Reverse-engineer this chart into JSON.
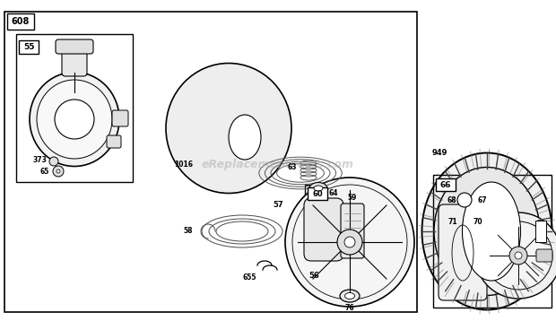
{
  "bg": "#ffffff",
  "lc": "#000000",
  "watermark": "eReplacementParts.com",
  "wm_color": "#b0b0b0",
  "wm_alpha": 0.55,
  "fig_w": 6.2,
  "fig_h": 3.58,
  "dpi": 100
}
